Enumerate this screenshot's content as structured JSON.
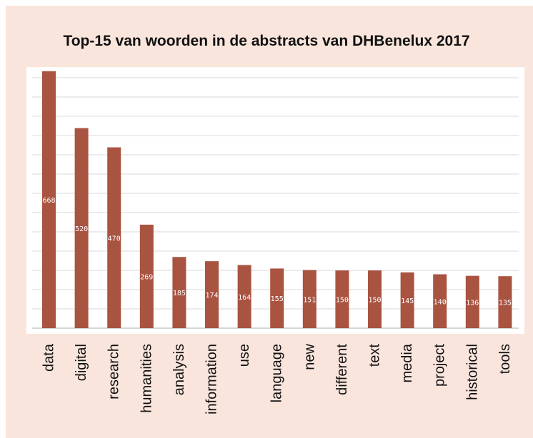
{
  "chart_data": {
    "type": "bar",
    "title": "Top-15 van woorden in de abstracts van DHBenelux 2017",
    "xlabel": "",
    "ylabel": "",
    "categories": [
      "data",
      "digital",
      "research",
      "humanities",
      "analysis",
      "information",
      "use",
      "language",
      "new",
      "different",
      "text",
      "media",
      "project",
      "historical",
      "tools"
    ],
    "values": [
      668,
      520,
      470,
      269,
      185,
      174,
      164,
      155,
      151,
      150,
      150,
      145,
      140,
      136,
      135
    ],
    "ylim": [
      0,
      675
    ],
    "grid": true,
    "legend": "none",
    "bar_color": "#a95341",
    "plot_background": "#ffffff",
    "frame_background": "#f9e5dc"
  }
}
